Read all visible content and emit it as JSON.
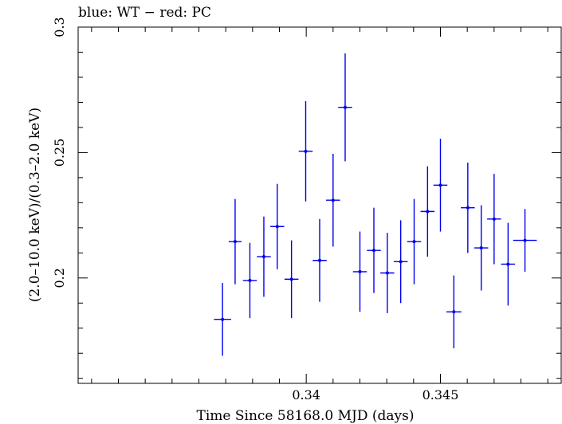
{
  "chart_data": {
    "type": "scatter",
    "title": "blue: WT − red: PC",
    "xlabel": "Time Since 58168.0 MJD (days)",
    "ylabel": "(2.0–10.0 keV)/(0.3–2.0 keV)",
    "xlim": [
      0.3315,
      0.3495
    ],
    "ylim": [
      0.158,
      0.3
    ],
    "x_ticks": [
      0.34,
      0.345
    ],
    "x_tick_labels": [
      "0.34",
      "0.345"
    ],
    "y_ticks": [
      0.2,
      0.25,
      0.3
    ],
    "y_tick_labels": [
      "0.2",
      "0.25",
      "0.3"
    ],
    "grid": false,
    "series": [
      {
        "color": "#0000ee",
        "points": [
          {
            "x": 0.33688,
            "xerr": 0.00032,
            "y": 0.1835,
            "yerr": 0.0145
          },
          {
            "x": 0.33735,
            "xerr": 0.00024,
            "y": 0.2145,
            "yerr": 0.017
          },
          {
            "x": 0.3379,
            "xerr": 0.00026,
            "y": 0.199,
            "yerr": 0.015
          },
          {
            "x": 0.33842,
            "xerr": 0.00026,
            "y": 0.2085,
            "yerr": 0.016
          },
          {
            "x": 0.33892,
            "xerr": 0.00026,
            "y": 0.2205,
            "yerr": 0.017
          },
          {
            "x": 0.33945,
            "xerr": 0.00026,
            "y": 0.1995,
            "yerr": 0.0155
          },
          {
            "x": 0.33998,
            "xerr": 0.00026,
            "y": 0.2505,
            "yerr": 0.02
          },
          {
            "x": 0.3405,
            "xerr": 0.00026,
            "y": 0.207,
            "yerr": 0.0165
          },
          {
            "x": 0.341,
            "xerr": 0.00026,
            "y": 0.231,
            "yerr": 0.0185
          },
          {
            "x": 0.34145,
            "xerr": 0.00026,
            "y": 0.268,
            "yerr": 0.0215
          },
          {
            "x": 0.342,
            "xerr": 0.00026,
            "y": 0.2025,
            "yerr": 0.016
          },
          {
            "x": 0.34252,
            "xerr": 0.00026,
            "y": 0.211,
            "yerr": 0.017
          },
          {
            "x": 0.34302,
            "xerr": 0.00026,
            "y": 0.202,
            "yerr": 0.016
          },
          {
            "x": 0.34352,
            "xerr": 0.00026,
            "y": 0.2065,
            "yerr": 0.0165
          },
          {
            "x": 0.34402,
            "xerr": 0.00026,
            "y": 0.2145,
            "yerr": 0.017
          },
          {
            "x": 0.34452,
            "xerr": 0.00026,
            "y": 0.2265,
            "yerr": 0.018
          },
          {
            "x": 0.345,
            "xerr": 0.00026,
            "y": 0.237,
            "yerr": 0.0185
          },
          {
            "x": 0.3455,
            "xerr": 0.00028,
            "y": 0.1865,
            "yerr": 0.0145
          },
          {
            "x": 0.34602,
            "xerr": 0.00026,
            "y": 0.228,
            "yerr": 0.018
          },
          {
            "x": 0.34652,
            "xerr": 0.00026,
            "y": 0.212,
            "yerr": 0.017
          },
          {
            "x": 0.347,
            "xerr": 0.00026,
            "y": 0.2235,
            "yerr": 0.018
          },
          {
            "x": 0.34752,
            "xerr": 0.00026,
            "y": 0.2055,
            "yerr": 0.0165
          },
          {
            "x": 0.34815,
            "xerr": 0.00044,
            "y": 0.215,
            "yerr": 0.0125
          }
        ]
      }
    ]
  }
}
